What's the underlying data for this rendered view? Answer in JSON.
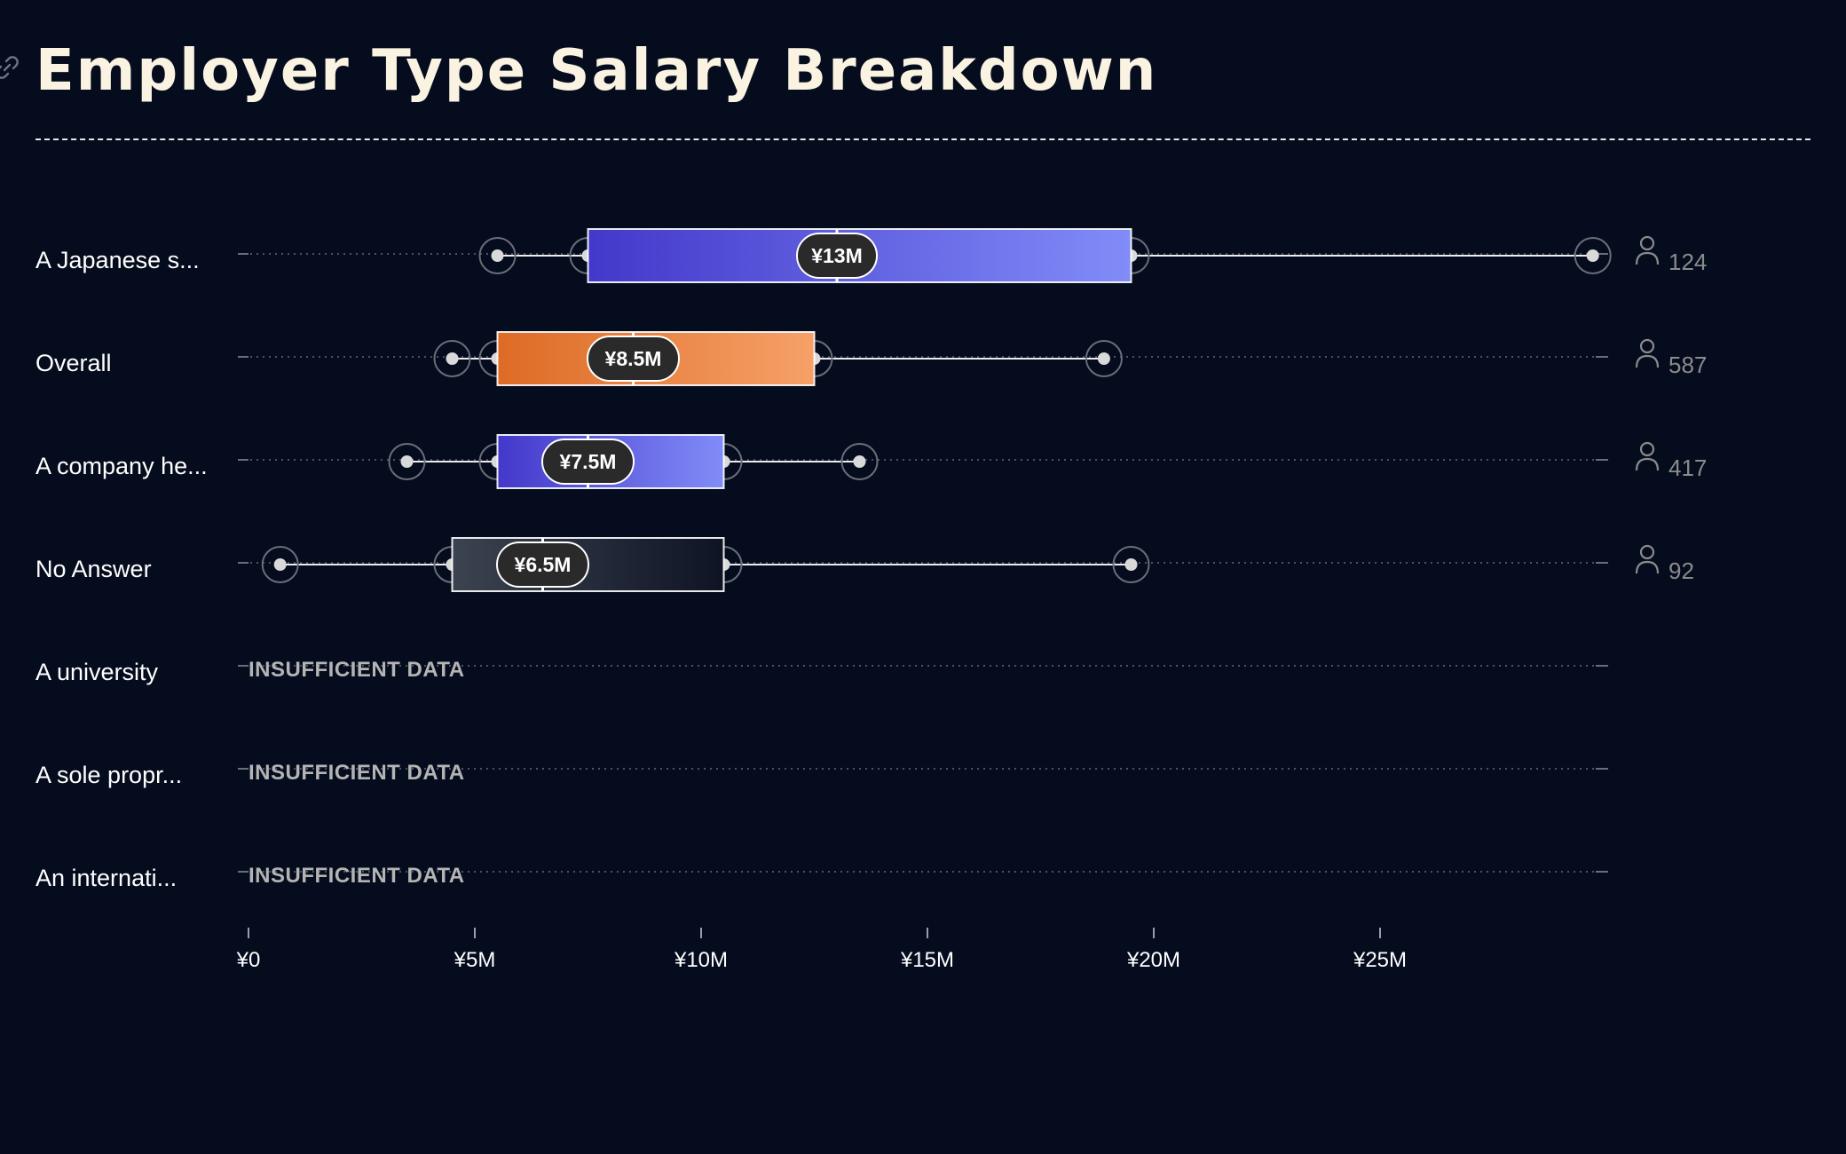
{
  "title": "Employer Type Salary Breakdown",
  "icons": {
    "title_link": "link-icon",
    "respondent_count": "person-icon"
  },
  "colors": {
    "background": "#050c1e",
    "title": "#fbf3e2",
    "purple_start": "#4338ca",
    "purple_end": "#818cf8",
    "orange_start": "#dd6b25",
    "orange_end": "#f6a169",
    "gray_start": "#3c4350",
    "gray_end": "#0e1424",
    "label_text": "#ffffff",
    "muted_text": "#8b8b8b",
    "insufficient_text": "#b4b4b4",
    "median_pill": "#2a2a2a"
  },
  "chart_data": {
    "type": "box",
    "currency": "¥",
    "x_ticks": [
      "¥0",
      "¥5M",
      "¥10M",
      "¥15M",
      "¥20M",
      "¥25M"
    ],
    "x_tick_values": [
      0,
      5,
      10,
      15,
      20,
      25
    ],
    "xlim": [
      0,
      30
    ],
    "value_unit": "M JPY",
    "insufficient_label": "INSUFFICIENT DATA",
    "rows": [
      {
        "label": "A Japanese s...",
        "min": 5.5,
        "q1": 7.5,
        "median": 13,
        "q3": 19.5,
        "max": 29.7,
        "median_label": "¥13M",
        "count": "124",
        "color": "purple",
        "insufficient": false
      },
      {
        "label": "Overall",
        "min": 4.5,
        "q1": 5.5,
        "median": 8.5,
        "q3": 12.5,
        "max": 18.9,
        "median_label": "¥8.5M",
        "count": "587",
        "color": "orange",
        "insufficient": false
      },
      {
        "label": "A company he...",
        "min": 3.5,
        "q1": 5.5,
        "median": 7.5,
        "q3": 10.5,
        "max": 13.5,
        "median_label": "¥7.5M",
        "count": "417",
        "color": "purple",
        "insufficient": false
      },
      {
        "label": "No Answer",
        "min": 0.7,
        "q1": 4.5,
        "median": 6.5,
        "q3": 10.5,
        "max": 19.5,
        "median_label": "¥6.5M",
        "count": "92",
        "color": "gray",
        "insufficient": false
      },
      {
        "label": "A university",
        "insufficient": true
      },
      {
        "label": "A sole propr...",
        "insufficient": true
      },
      {
        "label": "An internati...",
        "insufficient": true
      }
    ]
  }
}
